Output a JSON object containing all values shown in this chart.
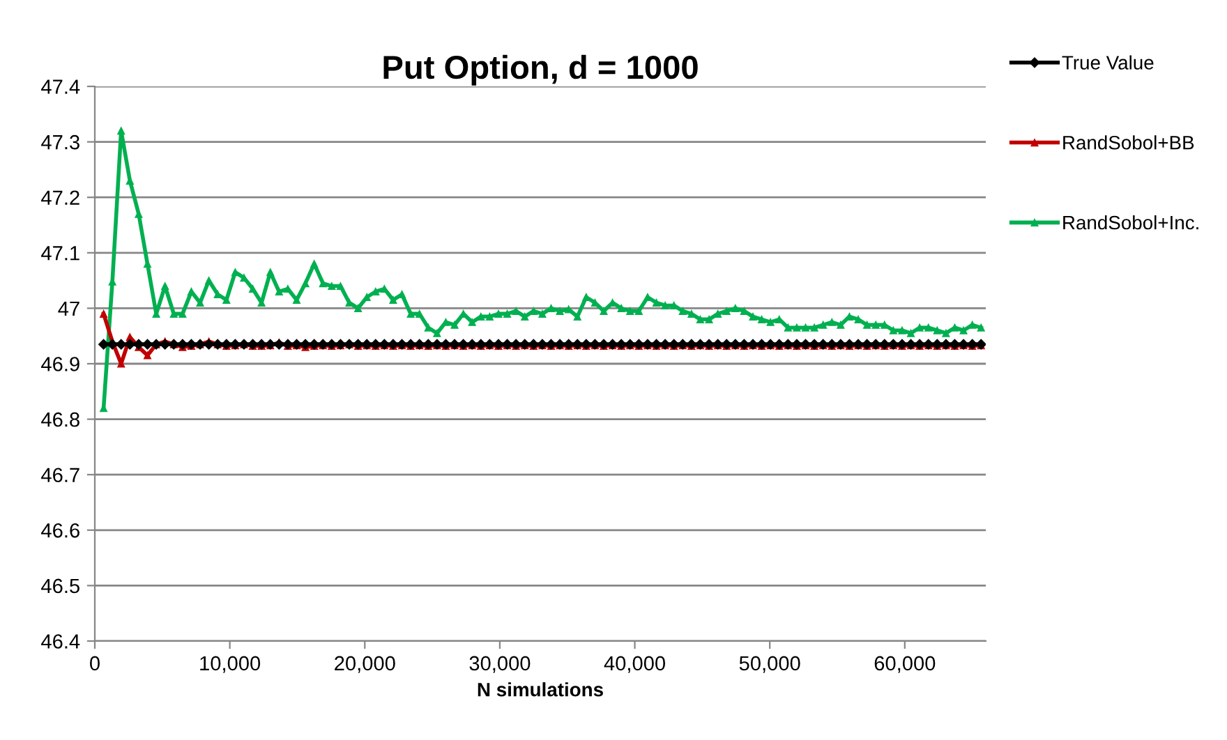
{
  "chart_data": {
    "type": "line",
    "title": "Put Option, d = 1000",
    "xlabel": "N simulations",
    "x": [
      650,
      1300,
      1950,
      2600,
      3250,
      3900,
      4550,
      5200,
      5850,
      6500,
      7150,
      7800,
      8450,
      9100,
      9750,
      10400,
      11050,
      11700,
      12350,
      13000,
      13650,
      14300,
      14950,
      15600,
      16250,
      16900,
      17550,
      18200,
      18850,
      19500,
      20150,
      20800,
      21450,
      22100,
      22750,
      23400,
      24050,
      24700,
      25350,
      26000,
      26650,
      27300,
      27950,
      28600,
      29250,
      29900,
      30550,
      31200,
      31850,
      32500,
      33150,
      33800,
      34450,
      35100,
      35750,
      36400,
      37050,
      37700,
      38350,
      39000,
      39650,
      40300,
      40950,
      41600,
      42250,
      42900,
      43550,
      44200,
      44850,
      45500,
      46150,
      46800,
      47450,
      48100,
      48750,
      49400,
      50050,
      50700,
      51350,
      52000,
      52650,
      53300,
      53950,
      54600,
      55250,
      55900,
      56550,
      57200,
      57850,
      58500,
      59150,
      59800,
      60450,
      61100,
      61750,
      62400,
      63050,
      63700,
      64350,
      65000,
      65650
    ],
    "series": [
      {
        "name": "True Value",
        "color": "#000000",
        "marker": "diamond",
        "values": [
          46.935,
          46.935,
          46.935,
          46.935,
          46.935,
          46.935,
          46.935,
          46.935,
          46.935,
          46.935,
          46.935,
          46.935,
          46.935,
          46.935,
          46.935,
          46.935,
          46.935,
          46.935,
          46.935,
          46.935,
          46.935,
          46.935,
          46.935,
          46.935,
          46.935,
          46.935,
          46.935,
          46.935,
          46.935,
          46.935,
          46.935,
          46.935,
          46.935,
          46.935,
          46.935,
          46.935,
          46.935,
          46.935,
          46.935,
          46.935,
          46.935,
          46.935,
          46.935,
          46.935,
          46.935,
          46.935,
          46.935,
          46.935,
          46.935,
          46.935,
          46.935,
          46.935,
          46.935,
          46.935,
          46.935,
          46.935,
          46.935,
          46.935,
          46.935,
          46.935,
          46.935,
          46.935,
          46.935,
          46.935,
          46.935,
          46.935,
          46.935,
          46.935,
          46.935,
          46.935,
          46.935,
          46.935,
          46.935,
          46.935,
          46.935,
          46.935,
          46.935,
          46.935,
          46.935,
          46.935,
          46.935,
          46.935,
          46.935,
          46.935,
          46.935,
          46.935,
          46.935,
          46.935,
          46.935,
          46.935,
          46.935,
          46.935,
          46.935,
          46.935,
          46.935,
          46.935,
          46.935,
          46.935,
          46.935,
          46.935,
          46.935
        ]
      },
      {
        "name": "RandSobol+BB",
        "color": "#c00000",
        "marker": "triangle",
        "values": [
          46.99,
          46.94,
          46.9,
          46.948,
          46.93,
          46.915,
          46.935,
          46.94,
          46.935,
          46.93,
          46.932,
          46.935,
          46.94,
          46.935,
          46.932,
          46.933,
          46.935,
          46.932,
          46.932,
          46.933,
          46.938,
          46.932,
          46.933,
          46.93,
          46.932,
          46.933,
          46.932,
          46.933,
          46.935,
          46.932,
          46.933,
          46.932,
          46.933,
          46.932,
          46.933,
          46.932,
          46.933,
          46.932,
          46.933,
          46.932,
          46.933,
          46.932,
          46.933,
          46.932,
          46.933,
          46.932,
          46.933,
          46.932,
          46.933,
          46.932,
          46.933,
          46.932,
          46.933,
          46.932,
          46.933,
          46.932,
          46.933,
          46.932,
          46.933,
          46.932,
          46.933,
          46.932,
          46.933,
          46.932,
          46.933,
          46.932,
          46.933,
          46.932,
          46.933,
          46.932,
          46.933,
          46.932,
          46.933,
          46.932,
          46.933,
          46.932,
          46.933,
          46.932,
          46.933,
          46.932,
          46.933,
          46.932,
          46.933,
          46.932,
          46.933,
          46.932,
          46.933,
          46.932,
          46.933,
          46.932,
          46.933,
          46.932,
          46.933,
          46.932,
          46.933,
          46.932,
          46.933,
          46.932,
          46.933,
          46.932,
          46.933
        ]
      },
      {
        "name": "RandSobol+Inc.",
        "color": "#00b050",
        "marker": "triangle",
        "values": [
          46.82,
          47.048,
          47.32,
          47.23,
          47.17,
          47.08,
          46.99,
          47.04,
          46.99,
          46.99,
          47.03,
          47.01,
          47.05,
          47.025,
          47.015,
          47.065,
          47.055,
          47.035,
          47.01,
          47.065,
          47.03,
          47.035,
          47.015,
          47.045,
          47.08,
          47.045,
          47.04,
          47.04,
          47.01,
          47.0,
          47.02,
          47.03,
          47.035,
          47.015,
          47.025,
          46.99,
          46.99,
          46.965,
          46.955,
          46.975,
          46.97,
          46.99,
          46.975,
          46.985,
          46.985,
          46.99,
          46.99,
          46.995,
          46.985,
          46.995,
          46.99,
          47.0,
          46.995,
          46.998,
          46.985,
          47.02,
          47.01,
          46.995,
          47.01,
          47.0,
          46.995,
          46.995,
          47.02,
          47.01,
          47.005,
          47.005,
          46.995,
          46.99,
          46.98,
          46.98,
          46.99,
          46.995,
          47.0,
          46.995,
          46.985,
          46.98,
          46.975,
          46.98,
          46.965,
          46.965,
          46.965,
          46.965,
          46.97,
          46.975,
          46.97,
          46.985,
          46.98,
          46.97,
          46.97,
          46.97,
          46.96,
          46.96,
          46.955,
          46.965,
          46.965,
          46.96,
          46.955,
          46.965,
          46.96,
          46.97,
          46.965
        ]
      }
    ],
    "xlim": [
      0,
      66000
    ],
    "xticks": [
      0,
      {
        "value": 10000,
        "label": "10,000"
      },
      {
        "value": 20000,
        "label": "20,000"
      },
      {
        "value": 30000,
        "label": "30,000"
      },
      {
        "value": 40000,
        "label": "40,000"
      },
      {
        "value": 50000,
        "label": "50,000"
      },
      {
        "value": 60000,
        "label": "60,000"
      }
    ],
    "ylim": [
      46.4,
      47.4
    ],
    "yticks": [
      46.4,
      46.5,
      46.6,
      46.7,
      46.8,
      46.9,
      47,
      47.1,
      47.2,
      47.3,
      47.4
    ],
    "grid": "y",
    "legend": "right",
    "line_style": "solid"
  }
}
